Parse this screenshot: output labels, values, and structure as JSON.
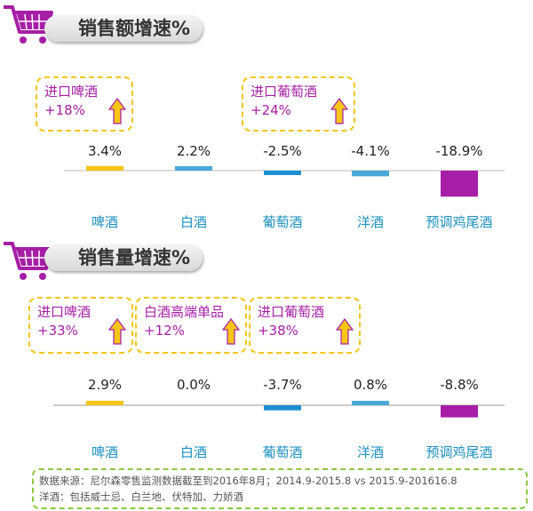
{
  "sections": [
    {
      "title": "销售额增速%",
      "callouts": [
        {
          "name": "进口啤酒",
          "value": "+18%"
        },
        {
          "name": "进口葡萄酒",
          "value": "+24%"
        }
      ]
    },
    {
      "title": "销售量增速%",
      "callouts": [
        {
          "name": "进口啤酒",
          "value": "+33%"
        },
        {
          "name": "白酒高端单品",
          "value": "+12%"
        },
        {
          "name": "进口葡萄酒",
          "value": "+38%"
        }
      ]
    }
  ],
  "chart_data": [
    {
      "type": "bar",
      "title": "销售额增速%",
      "categories": [
        "啤酒",
        "白酒",
        "葡萄酒",
        "洋酒",
        "预调鸡尾酒"
      ],
      "values": [
        3.4,
        2.2,
        -2.5,
        -4.1,
        -18.9
      ],
      "value_labels": [
        "3.4%",
        "2.2%",
        "-2.5%",
        "-4.1%",
        "-18.9%"
      ],
      "colors": [
        "#f5c518",
        "#4aa8d8",
        "#1d8fd0",
        "#4aa8d8",
        "#a61ea6"
      ]
    },
    {
      "type": "bar",
      "title": "销售量增速%",
      "categories": [
        "啤酒",
        "白酒",
        "葡萄酒",
        "洋酒",
        "预调鸡尾酒"
      ],
      "values": [
        2.9,
        0.0,
        -3.7,
        0.8,
        -8.8
      ],
      "value_labels": [
        "2.9%",
        "0.0%",
        "-3.7%",
        "0.8%",
        "-8.8%"
      ],
      "colors": [
        "#f5c518",
        "#4aa8d8",
        "#1d8fd0",
        "#4aa8d8",
        "#a61ea6"
      ]
    }
  ],
  "footnote": {
    "line1": "数据来源：尼尔森零售监测数据截至到2016年8月；2014.9-2015.8  vs 2015.9-201616.8",
    "line2": "洋酒：包括威士忌、白兰地、伏特加、力娇酒"
  },
  "colors": {
    "category_label": "#1a8fbf",
    "callout_text": "#a61ea6",
    "callout_border": "#f5c518",
    "arrow": "#f5c518",
    "footnote_border": "#8cc63f"
  },
  "icons": [
    "shopping-cart-icon",
    "up-arrow-icon"
  ]
}
